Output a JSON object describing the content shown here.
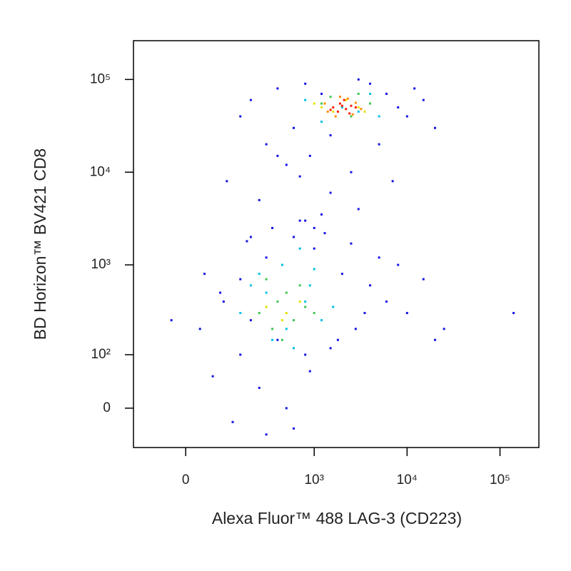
{
  "chart_data": {
    "type": "scatter",
    "x_label": "Alexa Fluor™ 488 LAG-3 (CD223)",
    "y_label": "BD Horizon™ BV421 CD8",
    "scale": "biexponential",
    "xlim": [
      -140,
      262000
    ],
    "ylim": [
      -65,
      262000
    ],
    "xticks": [
      0,
      {
        "value": 1000,
        "label": "10³"
      },
      {
        "value": 10000,
        "label": "10⁴"
      },
      {
        "value": 100000,
        "label": "10⁵"
      }
    ],
    "yticks": [
      0,
      {
        "value": 100,
        "label": "10²"
      },
      {
        "value": 1000,
        "label": "10³"
      },
      {
        "value": 10000,
        "label": "10⁴"
      },
      {
        "value": 100000,
        "label": "10⁵"
      }
    ],
    "series": [
      {
        "color": "#1414e6",
        "x": [
          200,
          400,
          800,
          1200,
          600,
          300,
          900,
          1500,
          2500,
          150,
          4000,
          6000,
          8000,
          10000,
          15000,
          20000,
          12000,
          5000,
          3000,
          7000,
          100,
          250,
          500,
          800,
          1500,
          3000,
          200,
          400,
          700,
          1200,
          30,
          80,
          150,
          300,
          600,
          1000,
          2000,
          4000,
          8000,
          15000,
          60,
          120,
          250,
          500,
          900,
          1800,
          3500,
          6000,
          -30,
          40,
          180,
          350,
          700,
          1300,
          2500,
          5000,
          10000,
          25000,
          140000,
          20000,
          90,
          200,
          400,
          800,
          1500,
          2800,
          600,
          300,
          150,
          1000
        ],
        "y": [
          60000,
          80000,
          90000,
          70000,
          30000,
          20000,
          15000,
          25000,
          10000,
          40000,
          90000,
          70000,
          50000,
          40000,
          60000,
          30000,
          80000,
          20000,
          100000,
          8000,
          8000,
          5000,
          12000,
          3000,
          6000,
          4000,
          2000,
          15000,
          9000,
          3500,
          200,
          500,
          100,
          1200,
          2000,
          1500,
          800,
          600,
          1000,
          700,
          50,
          -20,
          30,
          0,
          60,
          150,
          300,
          400,
          250,
          800,
          1800,
          2500,
          3000,
          2200,
          1700,
          1200,
          300,
          200,
          300,
          150,
          400,
          250,
          150,
          100,
          120,
          200,
          -30,
          -40,
          700,
          2500
        ]
      },
      {
        "color": "#00c0e8",
        "x": [
          150,
          300,
          500,
          800,
          1200,
          250,
          450,
          900,
          1600,
          3000,
          800,
          1200,
          4000,
          5000,
          350,
          600,
          200,
          1000,
          700,
          2000
        ],
        "y": [
          300,
          500,
          200,
          400,
          250,
          800,
          1000,
          600,
          350,
          45000,
          60000,
          35000,
          70000,
          40000,
          150,
          120,
          600,
          900,
          1500,
          50000
        ]
      },
      {
        "color": "#3cc850",
        "x": [
          250,
          400,
          600,
          800,
          350,
          500,
          700,
          300,
          1000,
          450,
          1200,
          1500,
          2500,
          4000,
          3000
        ],
        "y": [
          300,
          400,
          250,
          350,
          200,
          500,
          600,
          700,
          300,
          150,
          55000,
          65000,
          40000,
          55000,
          70000
        ]
      },
      {
        "color": "#e6e000",
        "x": [
          300,
          500,
          700,
          450,
          1200,
          1600,
          2200,
          3000,
          3500,
          1000
        ],
        "y": [
          350,
          300,
          400,
          250,
          50000,
          45000,
          60000,
          50000,
          45000,
          55000
        ]
      },
      {
        "color": "#ff8c00",
        "x": [
          1300,
          2800,
          3200,
          1700,
          2300,
          1400,
          2600,
          1900
        ],
        "y": [
          55000,
          56000,
          48000,
          40000,
          62000,
          45000,
          42000,
          65000
        ]
      },
      {
        "color": "#ff1e00",
        "x": [
          1600,
          1900,
          2200,
          2500,
          1800,
          2100,
          2800,
          1500,
          2400,
          2000
        ],
        "y": [
          50000,
          55000,
          48000,
          52000,
          45000,
          60000,
          50000,
          47000,
          43000,
          52000
        ]
      }
    ]
  }
}
